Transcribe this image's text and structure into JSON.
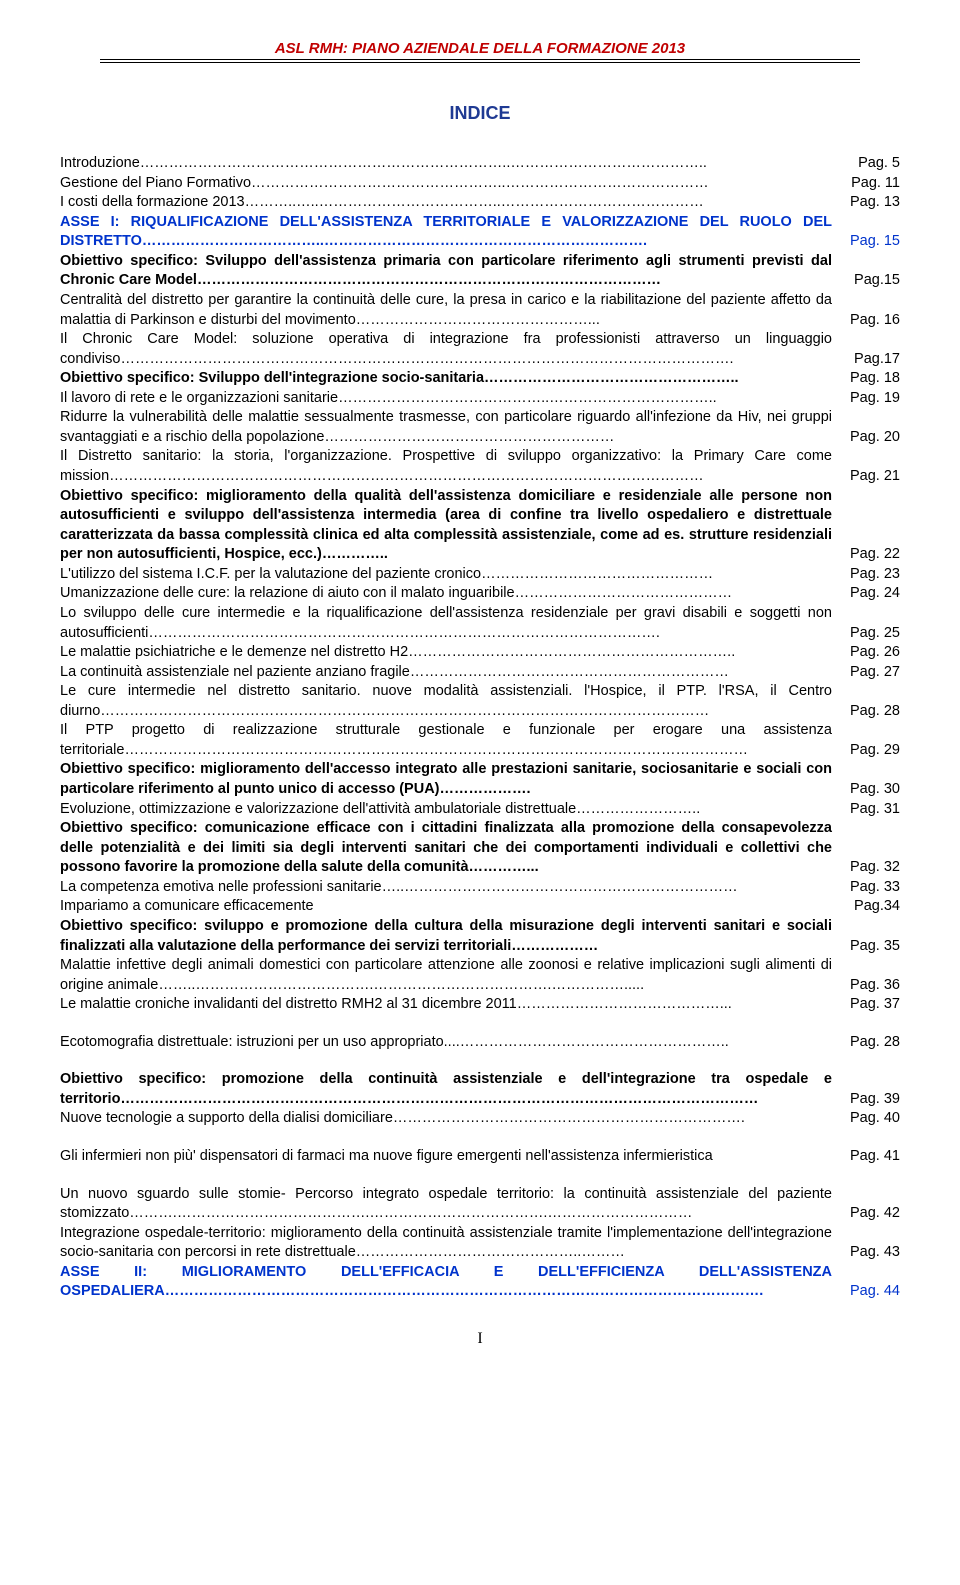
{
  "header": {
    "title": "ASL RMH: PIANO AZIENDALE DELLA FORMAZIONE 2013"
  },
  "indice": {
    "title": "INDICE"
  },
  "footer": {
    "page": "I"
  },
  "toc": [
    {
      "text": "Introduzione…………………………………………………………………..…………………………………..",
      "page": "Pag. 5",
      "bold": false,
      "blue": false
    },
    {
      "text": "Gestione del Piano Formativo……………………………………………..……………………………………",
      "page": "Pag. 11",
      "bold": false,
      "blue": false
    },
    {
      "text": "I costi della formazione 2013………..…..………………………………..……………………………………",
      "page": "Pag. 13",
      "bold": false,
      "blue": false
    },
    {
      "text": "ASSE I: RIQUALIFICAZIONE DELL'ASSISTENZA TERRITORIALE E VALORIZZAZIONE DEL RUOLO DEL DISTRETTO………………………………..………………………………………………………….",
      "page": "Pag. 15",
      "bold": true,
      "blue": true
    },
    {
      "text": "Obiettivo specifico: Sviluppo dell'assistenza primaria con particolare riferimento agli strumenti previsti dal Chronic Care  Model……………………………………………………………………………………",
      "page": "Pag.15",
      "bold": true,
      "blue": false
    },
    {
      "text": "Centralità del distretto per garantire la continuità delle cure, la presa in carico e la riabilitazione del paziente affetto da malattia di Parkinson e disturbi del movimento…………………………………………...",
      "page": "Pag. 16",
      "bold": false,
      "blue": false
    },
    {
      "text": "Il Chronic Care Model: soluzione operativa di integrazione fra professionisti attraverso un linguaggio condiviso……………………………………………………………………………………………………………….",
      "page": "Pag.17",
      "bold": false,
      "blue": false
    },
    {
      "text": "Obiettivo specifico: Sviluppo dell'integrazione socio-sanitaria……………………………………………..",
      "page": "Pag. 18",
      "bold": true,
      "blue": false
    },
    {
      "text": "Il lavoro di rete e le organizzazioni sanitarie……………………………………..……………………………..",
      "page": "Pag. 19",
      "bold": false,
      "blue": false
    },
    {
      "text": "Ridurre la vulnerabilità delle  malattie sessualmente trasmesse, con particolare riguardo all'infezione da Hiv, nei gruppi svantaggiati e a rischio della popolazione……………………………………………………",
      "page": "Pag. 20",
      "bold": false,
      "blue": false
    },
    {
      "text": "Il Distretto sanitario: la storia, l'organizzazione. Prospettive di sviluppo organizzativo: la Primary Care come mission……………………………………………………………………………………………………………",
      "page": "Pag. 21",
      "bold": false,
      "blue": false
    },
    {
      "text": "Obiettivo specifico: miglioramento della qualità dell'assistenza domiciliare e residenziale alle persone non autosufficienti e sviluppo dell'assistenza intermedia (area di confine tra livello ospedaliero e distrettuale caratterizzata da bassa complessità clinica ed alta complessità assistenziale, come ad es. strutture residenziali per non autosufficienti, Hospice, ecc.)…………..",
      "page": "Pag. 22",
      "bold": true,
      "blue": false
    },
    {
      "text": "L'utilizzo del sistema  I.C.F.  per la valutazione del paziente cronico…………………………………………",
      "page": "Pag. 23",
      "bold": false,
      "blue": false
    },
    {
      "text": "Umanizzazione delle cure: la relazione di aiuto con il malato inguaribile………………………………………",
      "page": "Pag. 24",
      "bold": false,
      "blue": false
    },
    {
      "text": "Lo sviluppo delle cure intermedie e la riqualificazione dell'assistenza residenziale per gravi disabili e soggetti non autosufficienti…………………………………………………………………………………………….",
      "page": "Pag. 25",
      "bold": false,
      "blue": false
    },
    {
      "text": "Le malattie psichiatriche e le demenze nel distretto H2…………………………………………………………..",
      "page": "Pag. 26",
      "bold": false,
      "blue": false
    },
    {
      "text": "La continuità assistenziale nel paziente anziano fragile…………………………………………………………",
      "page": "Pag. 27",
      "bold": false,
      "blue": false
    },
    {
      "text": "Le cure intermedie nel distretto sanitario. nuove modalità assistenziali. l'Hospice, il PTP. l'RSA, il Centro diurno………………………………………………………………………………………………………………",
      "page": "Pag. 28",
      "bold": false,
      "blue": false
    },
    {
      "text": "Il PTP progetto di realizzazione strutturale gestionale e funzionale per erogare una assistenza territoriale…………………………………………………………………………………………………………………",
      "page": "Pag. 29",
      "bold": false,
      "blue": false
    },
    {
      "text": "Obiettivo specifico: miglioramento dell'accesso integrato alle prestazioni sanitarie, sociosanitarie e sociali con particolare riferimento al punto unico di accesso (PUA)……………….",
      "page": "Pag. 30",
      "bold": true,
      "blue": false
    },
    {
      "text": "Evoluzione, ottimizzazione e valorizzazione dell'attività  ambulatoriale  distrettuale……………………..",
      "page": "Pag. 31",
      "bold": false,
      "blue": false
    },
    {
      "text": "Obiettivo specifico: comunicazione efficace con i cittadini finalizzata alla promozione della consapevolezza delle potenzialità e dei limiti sia degli interventi sanitari che dei comportamenti individuali e collettivi che possono favorire la promozione della salute della comunità…………...",
      "page": "Pag. 32",
      "bold": true,
      "blue": false
    },
    {
      "text": "La competenza emotiva nelle professioni sanitarie…..……………………………………………………………",
      "page": "Pag. 33",
      "bold": false,
      "blue": false
    },
    {
      "text": "Impariamo a comunicare efficacemente",
      "page": "Pag.34",
      "bold": false,
      "blue": false
    },
    {
      "text": "Obiettivo specifico: sviluppo e promozione della cultura della misurazione degli interventi sanitari e sociali finalizzati alla valutazione della performance dei servizi territoriali………………",
      "page": "Pag. 35",
      "bold": true,
      "blue": false
    },
    {
      "text": "Malattie infettive degli animali domestici con particolare attenzione alle zoonosi e relative implicazioni sugli alimenti di origine animale……..……………………………….……………………………….…………….....",
      "page": "Pag. 36",
      "bold": false,
      "blue": false
    },
    {
      "text": "Le malattie croniche invalidanti del distretto RMH2 al 31 dicembre 2011……………………………………...",
      "page": "Pag. 37",
      "bold": false,
      "blue": false
    },
    {
      "text": "SPACER",
      "page": "",
      "bold": false,
      "blue": false,
      "spacer": true
    },
    {
      "text": "Ecotomografia distrettuale: istruzioni per un uso appropriato....………………………………………………..",
      "page": "Pag. 28",
      "bold": false,
      "blue": false
    },
    {
      "text": "SPACER",
      "page": "",
      "bold": false,
      "blue": false,
      "spacer": true
    },
    {
      "text": "Obiettivo specifico: promozione della continuità assistenziale e dell'integrazione tra ospedale e territorio……………………………………………………………………………………………………………………",
      "page": "Pag. 39",
      "bold": true,
      "blue": false
    },
    {
      "text": "Nuove tecnologie a supporto della dialisi domiciliare……………………………………………………………….",
      "page": "Pag. 40",
      "bold": false,
      "blue": false
    },
    {
      "text": "SPACER",
      "page": "",
      "bold": false,
      "blue": false,
      "spacer": true
    },
    {
      "text": "Gli infermieri non più' dispensatori di farmaci ma nuove figure emergenti nell'assistenza infermieristica",
      "page": "Pag. 41",
      "bold": false,
      "blue": false
    },
    {
      "text": "SPACER",
      "page": "",
      "bold": false,
      "blue": false,
      "spacer": true
    },
    {
      "text": "Un nuovo sguardo sulle stomie- Percorso integrato ospedale territorio: la continuità assistenziale del paziente stomizzato……….………………………………….……………………………….…………………………",
      "page": "Pag. 42",
      "bold": false,
      "blue": false
    },
    {
      "text": "Integrazione ospedale-territorio: miglioramento della continuità assistenziale tramite l'implementazione dell'integrazione socio-sanitaria con percorsi in rete distrettuale………………………………………..………",
      "page": "Pag. 43",
      "bold": false,
      "blue": false
    },
    {
      "text": "ASSE II: MIGLIORAMENTO DELL'EFFICACIA E DELL'EFFICIENZA DELL'ASSISTENZA OSPEDALIERA…………………………………………………………………………………………………………….",
      "page": "Pag. 44",
      "bold": true,
      "blue": true
    }
  ]
}
